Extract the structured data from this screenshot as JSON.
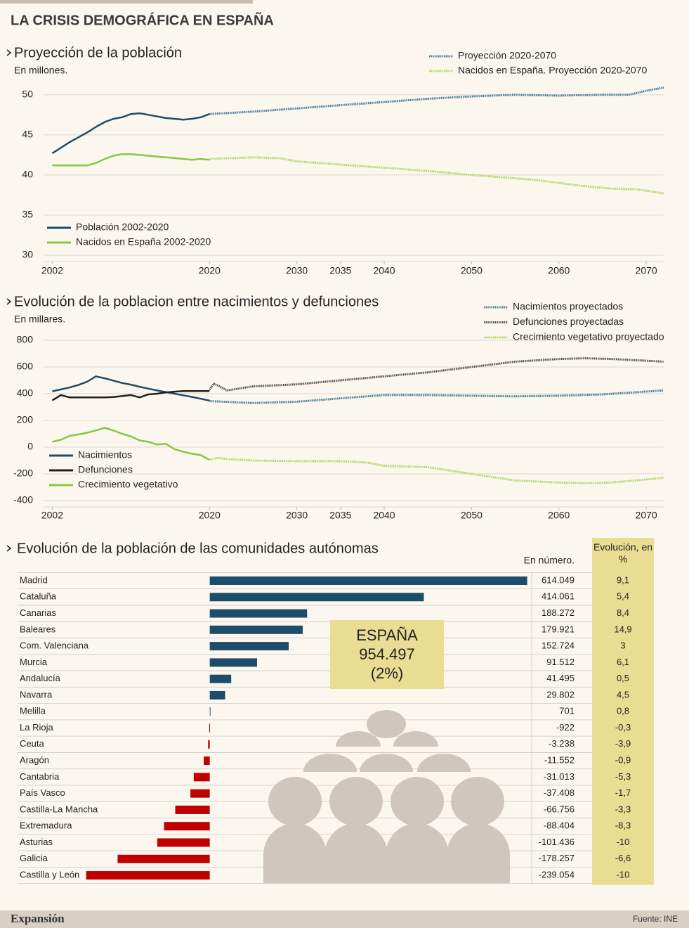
{
  "title": "LA CRISIS DEMOGRÁFICA EN ESPAÑA",
  "brand": "Expansión",
  "source": "Fuente: INE",
  "chart_data": [
    {
      "type": "line",
      "title": "Proyección de la población",
      "subtitle": "En millones.",
      "xlim": [
        2001,
        2072
      ],
      "xticks": [
        2002,
        2020,
        2030,
        2035,
        2040,
        2050,
        2060,
        2070
      ],
      "ylim": [
        30,
        52
      ],
      "yticks": [
        30,
        35,
        40,
        45,
        50
      ],
      "grid": true,
      "series": [
        {
          "name": "Población 2002-2020",
          "color": "#1c4e6b",
          "style": "solid",
          "legend": "bottom-left",
          "x": [
            2002,
            2003,
            2004,
            2005,
            2006,
            2007,
            2008,
            2009,
            2010,
            2011,
            2012,
            2013,
            2014,
            2015,
            2016,
            2017,
            2018,
            2019,
            2020
          ],
          "values": [
            42.7,
            43.4,
            44.1,
            44.7,
            45.3,
            46.0,
            46.6,
            47.0,
            47.2,
            47.6,
            47.7,
            47.5,
            47.3,
            47.1,
            47.0,
            46.9,
            47.0,
            47.2,
            47.6
          ]
        },
        {
          "name": "Nacidos en España 2002-2020",
          "color": "#8cc63f",
          "style": "solid",
          "legend": "bottom-left",
          "x": [
            2002,
            2003,
            2004,
            2005,
            2006,
            2007,
            2008,
            2009,
            2010,
            2011,
            2012,
            2013,
            2014,
            2015,
            2016,
            2017,
            2018,
            2019,
            2020
          ],
          "values": [
            41.2,
            41.2,
            41.2,
            41.2,
            41.2,
            41.5,
            42.0,
            42.4,
            42.6,
            42.6,
            42.5,
            42.4,
            42.3,
            42.2,
            42.1,
            42.0,
            41.9,
            42.0,
            41.9
          ]
        },
        {
          "name": "Proyección 2020-2070",
          "color": "#4a7f9c",
          "style": "dotted",
          "legend": "top-right",
          "x": [
            2020,
            2025,
            2030,
            2035,
            2040,
            2045,
            2050,
            2055,
            2060,
            2065,
            2068,
            2070,
            2072
          ],
          "values": [
            47.6,
            47.9,
            48.3,
            48.7,
            49.1,
            49.5,
            49.8,
            50.0,
            49.9,
            50.0,
            50.0,
            50.5,
            50.9
          ]
        },
        {
          "name": "Nacidos en España. Proyección 2020-2070",
          "color": "#b3d66a",
          "style": "dotted",
          "legend": "top-right",
          "x": [
            2020,
            2025,
            2028,
            2030,
            2035,
            2040,
            2045,
            2050,
            2055,
            2058,
            2060,
            2063,
            2066,
            2069,
            2072
          ],
          "values": [
            42.0,
            42.2,
            42.1,
            41.7,
            41.3,
            40.9,
            40.5,
            40.0,
            39.6,
            39.3,
            39.0,
            38.6,
            38.3,
            38.2,
            37.7
          ]
        }
      ]
    },
    {
      "type": "line",
      "title": "Evolución de la poblacion entre nacimientos y defunciones",
      "subtitle": "En millares.",
      "xlim": [
        2001,
        2072
      ],
      "xticks": [
        2002,
        2020,
        2030,
        2035,
        2040,
        2050,
        2060,
        2070
      ],
      "ylim": [
        -400,
        850
      ],
      "yticks": [
        -400,
        -200,
        0,
        200,
        400,
        600,
        800
      ],
      "grid": true,
      "series": [
        {
          "name": "Nacimientos",
          "color": "#1c4e6b",
          "style": "solid",
          "legend": "bottom-left",
          "x": [
            2002,
            2003,
            2004,
            2005,
            2006,
            2007,
            2008,
            2009,
            2010,
            2011,
            2012,
            2013,
            2014,
            2015,
            2016,
            2017,
            2018,
            2019,
            2020
          ],
          "values": [
            418,
            432,
            447,
            465,
            490,
            530,
            515,
            498,
            480,
            468,
            452,
            438,
            424,
            412,
            400,
            388,
            376,
            362,
            348
          ]
        },
        {
          "name": "Defunciones",
          "color": "#231f20",
          "style": "solid",
          "legend": "bottom-left",
          "x": [
            2002,
            2003,
            2004,
            2005,
            2006,
            2007,
            2008,
            2009,
            2010,
            2011,
            2012,
            2013,
            2014,
            2015,
            2016,
            2017,
            2018,
            2019,
            2020
          ],
          "values": [
            350,
            390,
            372,
            372,
            372,
            372,
            372,
            375,
            382,
            390,
            372,
            395,
            400,
            410,
            415,
            420,
            420,
            420,
            420
          ]
        },
        {
          "name": "Crecimiento vegetativo",
          "color": "#8cc63f",
          "style": "solid",
          "legend": "bottom-left",
          "x": [
            2002,
            2003,
            2004,
            2005,
            2006,
            2007,
            2008,
            2009,
            2010,
            2011,
            2012,
            2013,
            2014,
            2015,
            2016,
            2017,
            2018,
            2019,
            2020
          ],
          "values": [
            40,
            55,
            85,
            95,
            108,
            125,
            145,
            125,
            100,
            80,
            50,
            40,
            20,
            25,
            -15,
            -35,
            -50,
            -60,
            -95
          ]
        },
        {
          "name": "Nacimientos proyectados",
          "color": "#4a7f9c",
          "style": "dotted",
          "legend": "top-right",
          "x": [
            2020,
            2025,
            2030,
            2035,
            2040,
            2045,
            2050,
            2055,
            2060,
            2065,
            2072
          ],
          "values": [
            345,
            330,
            340,
            365,
            390,
            390,
            385,
            380,
            385,
            395,
            425
          ]
        },
        {
          "name": "Defunciones proyectadas",
          "color": "#555555",
          "style": "dotted",
          "legend": "top-right",
          "x": [
            2020,
            2020.5,
            2021,
            2022,
            2025,
            2030,
            2035,
            2040,
            2045,
            2050,
            2055,
            2060,
            2063,
            2066,
            2072
          ],
          "values": [
            430,
            475,
            460,
            425,
            455,
            470,
            500,
            530,
            560,
            600,
            640,
            660,
            665,
            660,
            640
          ]
        },
        {
          "name": "Crecimiento vegetativo proyectado",
          "color": "#b3d66a",
          "style": "dotted",
          "legend": "top-right",
          "x": [
            2020,
            2021,
            2022,
            2025,
            2030,
            2035,
            2038,
            2040,
            2045,
            2050,
            2055,
            2060,
            2063,
            2066,
            2072
          ],
          "values": [
            -95,
            -80,
            -90,
            -100,
            -105,
            -105,
            -115,
            -140,
            -150,
            -200,
            -250,
            -265,
            -270,
            -265,
            -230
          ]
        }
      ]
    },
    {
      "type": "hbar",
      "title": "Evolución de la población de las comunidades autónomas",
      "categories": [
        "Madrid",
        "Cataluña",
        "Canarias",
        "Baleares",
        "Com. Valenciana",
        "Murcia",
        "Andalucía",
        "Navarra",
        "Melilla",
        "La Rioja",
        "Ceuta",
        "Aragón",
        "Cantabria",
        "País Vasco",
        "Castilla-La Mancha",
        "Extremadura",
        "Asturias",
        "Galicia",
        "Castilla y León"
      ],
      "xlim": [
        -240000,
        620000
      ],
      "series": [
        {
          "name": "En número.",
          "color": "#1c4e6b",
          "negative_color": "#c00000",
          "values": [
            614049,
            414061,
            188272,
            179921,
            152724,
            91512,
            41495,
            29802,
            701,
            -922,
            -3238,
            -11552,
            -31013,
            -37408,
            -66756,
            -88404,
            -101436,
            -178257,
            -239054
          ],
          "value_labels": [
            "614.049",
            "414.061",
            "188.272",
            "179.921",
            "152.724",
            "91.512",
            "41.495",
            "29.802",
            "701",
            "-922",
            "-3.238",
            "-11.552",
            "-31.013",
            "-37.408",
            "-66.756",
            "-88.404",
            "-101.436",
            "-178.257",
            "-239.054"
          ]
        },
        {
          "name": "Evolución, en %",
          "color": "#e8dd93",
          "values": [
            9.1,
            5.4,
            8.4,
            14.9,
            3,
            6.1,
            0.5,
            4.5,
            0.8,
            -0.3,
            -3.9,
            -0.9,
            -5.3,
            -1.7,
            -3.3,
            -8.3,
            -10,
            -6.6,
            -10
          ],
          "value_labels": [
            "9,1",
            "5,4",
            "8,4",
            "14,9",
            "3",
            "6,1",
            "0,5",
            "4,5",
            "0,8",
            "-0,3",
            "-3,9",
            "-0,9",
            "-5,3",
            "-1,7",
            "-3,3",
            "-8,3",
            "-10",
            "-6,6",
            "-10"
          ]
        }
      ],
      "annotation": [
        "ESPAÑA",
        "954.497",
        "(2%)"
      ],
      "annotation_color": "#e8dd93"
    }
  ]
}
